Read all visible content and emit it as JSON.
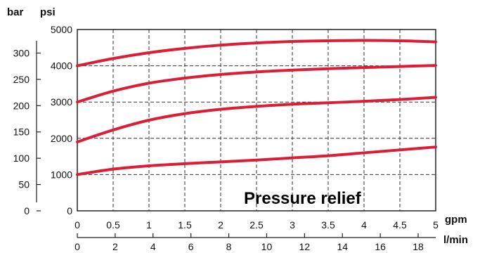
{
  "chart_data": {
    "type": "line",
    "title": "",
    "annotation": "Pressure relief",
    "x_unit_primary": "gpm",
    "x_unit_secondary": "l/min",
    "y_unit_primary": "psi",
    "y_unit_secondary": "bar",
    "x_ticks_gpm": [
      "0",
      "0.5",
      "1",
      "1.5",
      "2",
      "2.5",
      "3",
      "3.5",
      "4",
      "4.5",
      "5"
    ],
    "x_ticks_lpm": [
      "0",
      "2",
      "4",
      "6",
      "8",
      "10",
      "12",
      "14",
      "16",
      "18"
    ],
    "y_ticks_psi": [
      "0",
      "1000",
      "2000",
      "3000",
      "4000",
      "5000"
    ],
    "y_ticks_bar": [
      "0",
      "50",
      "100",
      "150",
      "200",
      "250",
      "300"
    ],
    "xlim": [
      0,
      5
    ],
    "ylim": [
      0,
      5000
    ],
    "grid": true,
    "line_color": "#d91e36",
    "series": [
      {
        "x": [
          0,
          0.5,
          1,
          1.5,
          2,
          2.5,
          3,
          3.5,
          4,
          4.5,
          5
        ],
        "values": [
          1000,
          1150,
          1240,
          1300,
          1350,
          1400,
          1460,
          1520,
          1600,
          1680,
          1760
        ]
      },
      {
        "x": [
          0,
          0.5,
          1,
          1.5,
          2,
          2.5,
          3,
          3.5,
          4,
          4.5,
          5
        ],
        "values": [
          1900,
          2230,
          2500,
          2680,
          2800,
          2880,
          2940,
          2980,
          3020,
          3070,
          3130
        ]
      },
      {
        "x": [
          0,
          0.5,
          1,
          1.5,
          2,
          2.5,
          3,
          3.5,
          4,
          4.5,
          5
        ],
        "values": [
          3000,
          3300,
          3520,
          3660,
          3760,
          3830,
          3880,
          3920,
          3950,
          3980,
          4010
        ]
      },
      {
        "x": [
          0,
          0.5,
          1,
          1.5,
          2,
          2.5,
          3,
          3.5,
          4,
          4.5,
          5
        ],
        "values": [
          4000,
          4200,
          4360,
          4480,
          4570,
          4630,
          4670,
          4690,
          4700,
          4690,
          4660
        ]
      }
    ]
  }
}
